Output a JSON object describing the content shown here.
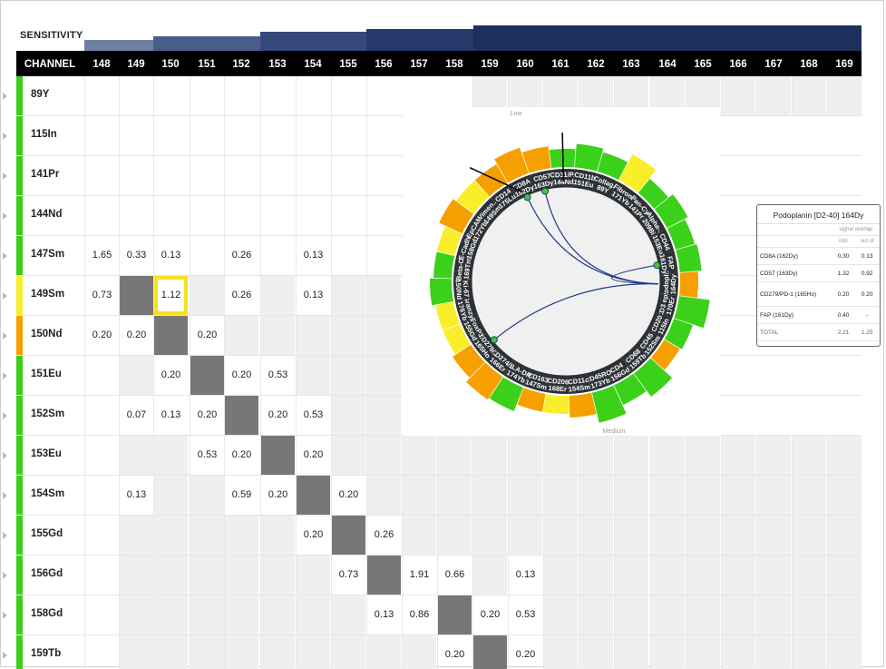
{
  "sensitivity": {
    "label": "SENSITIVITY"
  },
  "header": {
    "channel_label": "CHANNEL",
    "columns": [
      "148",
      "149",
      "150",
      "151",
      "152",
      "153",
      "154",
      "155",
      "156",
      "157",
      "158",
      "159",
      "160",
      "161",
      "162",
      "163",
      "164",
      "165",
      "166",
      "167",
      "168",
      "169"
    ]
  },
  "colors": {
    "green": "#3bd11a",
    "yellow": "#f8ee2a",
    "orange": "#f5a000",
    "navy": "#1e2f5e",
    "diag": "#777777",
    "select": "#f6e11e"
  },
  "rows": [
    {
      "label": "89Y",
      "status": "green",
      "values": {}
    },
    {
      "label": "115In",
      "status": "green",
      "values": {}
    },
    {
      "label": "141Pr",
      "status": "green",
      "values": {}
    },
    {
      "label": "144Nd",
      "status": "green",
      "values": {}
    },
    {
      "label": "147Sm",
      "status": "green",
      "values": {
        "148": "1.65",
        "149": "0.33",
        "150": "0.13",
        "152": "0.26",
        "154": "0.13"
      }
    },
    {
      "label": "149Sm",
      "status": "yellow",
      "values": {
        "148": "0.73",
        "150": "1.12",
        "152": "0.26",
        "154": "0.13"
      }
    },
    {
      "label": "150Nd",
      "status": "orange",
      "values": {
        "148": "0.20",
        "149": "0.20",
        "151": "0.20"
      }
    },
    {
      "label": "151Eu",
      "status": "green",
      "values": {
        "150": "0.20",
        "152": "0.20",
        "153": "0.53"
      }
    },
    {
      "label": "152Sm",
      "status": "green",
      "values": {
        "149": "0.07",
        "150": "0.13",
        "151": "0.20",
        "153": "0.20",
        "154": "0.53"
      }
    },
    {
      "label": "153Eu",
      "status": "green",
      "values": {
        "151": "0.53",
        "152": "0.20",
        "154": "0.20"
      }
    },
    {
      "label": "154Sm",
      "status": "green",
      "values": {
        "149": "0.13",
        "152": "0.59",
        "153": "0.20",
        "155": "0.20"
      }
    },
    {
      "label": "155Gd",
      "status": "green",
      "values": {
        "154": "0.20",
        "156": "0.26"
      }
    },
    {
      "label": "156Gd",
      "status": "green",
      "values": {
        "155": "0.73",
        "157": "1.91",
        "158": "0.66",
        "160": "0.13"
      }
    },
    {
      "label": "158Gd",
      "status": "green",
      "values": {
        "156": "0.13",
        "157": "0.86",
        "159": "0.20",
        "160": "0.53"
      }
    },
    {
      "label": "159Tb",
      "status": "green",
      "values": {
        "158": "0.20",
        "160": "0.20"
      }
    }
  ],
  "chord": {
    "low_label": "Low",
    "medium_label": "Medium",
    "markers": [
      {
        "l1": "CD14",
        "l2": "175Lu"
      },
      {
        "l1": "CD8A",
        "l2": "162Dy"
      },
      {
        "l1": "CD57",
        "l2": "163Dy"
      },
      {
        "l1": "CD31/P..",
        "l2": "144Nd"
      },
      {
        "l1": "CD11b",
        "l2": "151Eu"
      },
      {
        "l1": "Collag..",
        "l2": "89Y"
      },
      {
        "l1": "Fibron..",
        "l2": "171Yb"
      },
      {
        "l1": "Pan-Cy..",
        "l2": "141Pr"
      },
      {
        "l1": "Alpha-..",
        "l2": "209Bi"
      },
      {
        "l1": "CD44",
        "l2": "153Eu"
      },
      {
        "l1": "FAP",
        "l2": "161Dy"
      },
      {
        "l1": "Podopl..",
        "l2": "164Dy"
      },
      {
        "l1": "CD3 ep..",
        "l2": "170Er"
      },
      {
        "l1": "CD20",
        "l2": "115In"
      },
      {
        "l1": "CD45",
        "l2": "152Sm"
      },
      {
        "l1": "CD68",
        "l2": "159Tb"
      },
      {
        "l1": "CD4",
        "l2": "156Gd"
      },
      {
        "l1": "CD45RO",
        "l2": "173Yb"
      },
      {
        "l1": "CD11c",
        "l2": "154Sm"
      },
      {
        "l1": "CD206",
        "l2": "168Er"
      },
      {
        "l1": "CD163",
        "l2": "147Sm"
      },
      {
        "l1": "HLA-DR",
        "l2": "174Yb"
      },
      {
        "l1": "CD274/..",
        "l2": "166Er"
      },
      {
        "l1": "CD279/..",
        "l2": "165Ho"
      },
      {
        "l1": "FoxP3",
        "l2": "155Gd"
      },
      {
        "l1": "Granzy..",
        "l2": "176Yb"
      },
      {
        "l1": "Ki-67",
        "l2": "150Nd"
      },
      {
        "l1": "Beta-C..",
        "l2": "169Tm"
      },
      {
        "l1": "E-Cadh..",
        "l2": "158Gd"
      },
      {
        "l1": "EpCAM",
        "l2": "172Yb"
      },
      {
        "l1": "Vimen..",
        "l2": "149Sm"
      }
    ]
  },
  "tooltip": {
    "title": "Podoplanin [D2-40] 164Dy",
    "sub_header": "signal overlap",
    "col_into": "into",
    "col_outof": "out of",
    "rows": [
      {
        "label": "CD8A (162Dy)",
        "into": "0.30",
        "outof": "0.13"
      },
      {
        "label": "CD57 (163Dy)",
        "into": "1.32",
        "outof": "0.92"
      },
      {
        "label": "CD279/PD-1 (165Ho)",
        "into": "0.20",
        "outof": "0.20"
      },
      {
        "label": "FAP (161Dy)",
        "into": "0.40",
        "outof": "-"
      }
    ],
    "total_label": "TOTAL",
    "total_into": "2.21",
    "total_outof": "1.25"
  }
}
